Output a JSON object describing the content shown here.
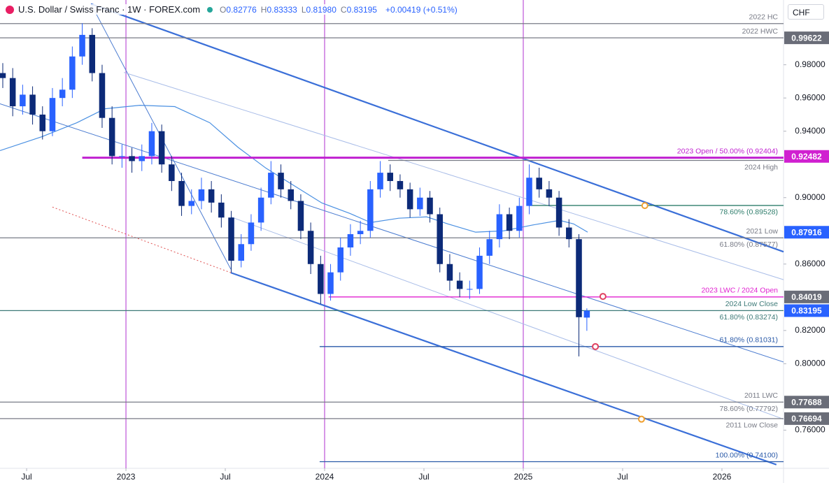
{
  "header": {
    "title": "U.S. Dollar / Swiss Franc · 1W · FOREX.com",
    "quote": [
      {
        "key": "O",
        "value": "0.82776"
      },
      {
        "key": "H",
        "value": "0.83333"
      },
      {
        "key": "L",
        "value": "0.81980"
      },
      {
        "key": "C",
        "value": "0.83195"
      }
    ],
    "change": "+0.00419 (+0.51%)",
    "currency": "CHF"
  },
  "chart_data": {
    "type": "candlestick",
    "up_color": "#2962ff",
    "down_color": "#0c2a78",
    "xlim": [
      2022.366,
      2026.31
    ],
    "ylim": [
      0.737,
      1.019
    ],
    "xticks": [
      {
        "value": 2022.5,
        "label": "Jul"
      },
      2023,
      {
        "value": 2023.5,
        "label": "Jul"
      },
      2024,
      {
        "value": 2024.5,
        "label": "Jul"
      },
      2025,
      {
        "value": 2025.5,
        "label": "Jul"
      },
      2026
    ],
    "yticks": [
      {
        "value": 0.98,
        "label": "0.98000"
      },
      {
        "value": 0.96,
        "label": "0.96000"
      },
      {
        "value": 0.94,
        "label": "0.94000"
      },
      {
        "value": 0.9,
        "label": "0.90000"
      },
      {
        "value": 0.86,
        "label": "0.86000"
      },
      {
        "value": 0.82,
        "label": "0.82000"
      },
      {
        "value": 0.8,
        "label": "0.80000"
      },
      {
        "value": 0.76,
        "label": "0.76000"
      }
    ],
    "x": [
      2022.38,
      2022.43,
      2022.48,
      2022.53,
      2022.58,
      2022.63,
      2022.68,
      2022.73,
      2022.78,
      2022.83,
      2022.88,
      2022.93,
      2022.98,
      2023.03,
      2023.08,
      2023.13,
      2023.18,
      2023.23,
      2023.28,
      2023.33,
      2023.38,
      2023.43,
      2023.48,
      2023.53,
      2023.58,
      2023.63,
      2023.68,
      2023.73,
      2023.78,
      2023.83,
      2023.88,
      2023.93,
      2023.98,
      2024.03,
      2024.08,
      2024.13,
      2024.18,
      2024.23,
      2024.28,
      2024.33,
      2024.38,
      2024.43,
      2024.48,
      2024.53,
      2024.58,
      2024.63,
      2024.68,
      2024.73,
      2024.78,
      2024.83,
      2024.88,
      2024.93,
      2024.98,
      2025.03,
      2025.08,
      2025.13,
      2025.18,
      2025.23,
      2025.28,
      2025.32
    ],
    "open": [
      0.975,
      0.972,
      0.955,
      0.962,
      0.95,
      0.94,
      0.96,
      0.965,
      0.985,
      0.998,
      0.975,
      0.948,
      0.925,
      0.925,
      0.922,
      0.925,
      0.94,
      0.92,
      0.91,
      0.895,
      0.898,
      0.905,
      0.897,
      0.888,
      0.862,
      0.872,
      0.885,
      0.9,
      0.915,
      0.905,
      0.898,
      0.88,
      0.86,
      0.842,
      0.855,
      0.87,
      0.878,
      0.88,
      0.905,
      0.915,
      0.91,
      0.905,
      0.893,
      0.9,
      0.89,
      0.86,
      0.85,
      0.845,
      0.845,
      0.865,
      0.875,
      0.89,
      0.88,
      0.895,
      0.912,
      0.905,
      0.9,
      0.882,
      0.875,
      0.82776
    ],
    "high": [
      0.981,
      0.978,
      0.968,
      0.967,
      0.955,
      0.966,
      0.972,
      0.991,
      1.005,
      1.002,
      0.98,
      0.955,
      0.932,
      0.93,
      0.932,
      0.945,
      0.944,
      0.925,
      0.915,
      0.905,
      0.912,
      0.91,
      0.902,
      0.892,
      0.878,
      0.89,
      0.906,
      0.922,
      0.92,
      0.91,
      0.902,
      0.885,
      0.865,
      0.86,
      0.876,
      0.884,
      0.886,
      0.91,
      0.922,
      0.92,
      0.914,
      0.909,
      0.906,
      0.904,
      0.894,
      0.866,
      0.855,
      0.85,
      0.87,
      0.88,
      0.896,
      0.894,
      0.9,
      0.92,
      0.918,
      0.91,
      0.904,
      0.887,
      0.878,
      0.83333
    ],
    "low": [
      0.966,
      0.949,
      0.95,
      0.944,
      0.935,
      0.937,
      0.955,
      0.96,
      0.98,
      0.97,
      0.942,
      0.92,
      0.918,
      0.915,
      0.916,
      0.92,
      0.915,
      0.904,
      0.889,
      0.89,
      0.893,
      0.891,
      0.882,
      0.855,
      0.858,
      0.868,
      0.88,
      0.896,
      0.9,
      0.893,
      0.875,
      0.854,
      0.836,
      0.838,
      0.85,
      0.865,
      0.872,
      0.876,
      0.9,
      0.904,
      0.9,
      0.888,
      0.889,
      0.885,
      0.855,
      0.844,
      0.84,
      0.839,
      0.842,
      0.86,
      0.87,
      0.875,
      0.876,
      0.89,
      0.9,
      0.895,
      0.877,
      0.87,
      0.8044,
      0.8198
    ],
    "close": [
      0.972,
      0.955,
      0.962,
      0.95,
      0.94,
      0.96,
      0.965,
      0.985,
      0.998,
      0.975,
      0.948,
      0.925,
      0.925,
      0.922,
      0.925,
      0.94,
      0.92,
      0.91,
      0.895,
      0.898,
      0.905,
      0.897,
      0.888,
      0.862,
      0.872,
      0.885,
      0.9,
      0.915,
      0.905,
      0.898,
      0.88,
      0.86,
      0.842,
      0.855,
      0.87,
      0.878,
      0.88,
      0.905,
      0.915,
      0.91,
      0.905,
      0.893,
      0.9,
      0.89,
      0.86,
      0.85,
      0.845,
      0.845,
      0.865,
      0.875,
      0.89,
      0.88,
      0.895,
      0.912,
      0.905,
      0.9,
      0.882,
      0.875,
      0.828,
      0.83195
    ],
    "moving_average": {
      "color": "#4a90e2",
      "x": [
        2022.366,
        2022.577,
        2022.753,
        2022.894,
        2023.07,
        2023.246,
        2023.422,
        2023.563,
        2023.704,
        2023.845,
        2023.986,
        2024.127,
        2024.232,
        2024.373,
        2024.514,
        2024.62,
        2024.76,
        2024.901,
        2025.042,
        2025.183,
        2025.253,
        2025.324
      ],
      "values": [
        0.9283,
        0.9367,
        0.9451,
        0.9535,
        0.9556,
        0.9548,
        0.9451,
        0.9304,
        0.9178,
        0.9073,
        0.8968,
        0.8905,
        0.885,
        0.8876,
        0.8884,
        0.8842,
        0.8792,
        0.88,
        0.8834,
        0.8863,
        0.8842,
        0.8792
      ]
    },
    "year_lines": {
      "color": "#b030d0",
      "values": [
        2023,
        2024,
        2025
      ]
    },
    "trend_lines": [
      {
        "style": "thick",
        "color": "#3a6fd8",
        "x": [
          2022.824,
          2026.31
        ],
        "y": [
          1.0166,
          0.8674
        ]
      },
      {
        "style": "thick",
        "color": "#3a6fd8",
        "x": [
          2023.528,
          2026.274
        ],
        "y": [
          0.8548,
          0.7392
        ]
      },
      {
        "style": "thin",
        "color": "#4a7bd0",
        "x": [
          2022.366,
          2026.31
        ],
        "y": [
          0.9565,
          0.801
        ]
      },
      {
        "style": "thin",
        "color": "#4a7bd0",
        "x": [
          2022.824,
          2023.528
        ],
        "y": [
          1.0166,
          0.8569
        ]
      },
      {
        "style": "faint",
        "color": "#a9bde8",
        "x": [
          2022.99,
          2026.31
        ],
        "y": [
          0.9754,
          0.8506
        ]
      },
      {
        "style": "faint",
        "color": "#a9bde8",
        "x": [
          2023.528,
          2026.31
        ],
        "y": [
          0.8884,
          0.7666
        ]
      },
      {
        "style": "dotted",
        "color": "#e05050",
        "x": [
          2022.63,
          2023.528
        ],
        "y": [
          0.8943,
          0.8548
        ]
      }
    ],
    "levels": [
      {
        "price": 1.0048,
        "from": 2022.366,
        "color": "#787b86",
        "above": "2022 HC"
      },
      {
        "price": 0.99622,
        "from": 2022.366,
        "color": "#787b86",
        "above": "2022 HWC"
      },
      {
        "price": 0.92404,
        "from": 2022.78,
        "color": "#c020d0",
        "above": "2023 Open / 50.00% (0.92404)"
      },
      {
        "price": 0.9224,
        "from": 2024.32,
        "color": "#787b86",
        "below": "2024 High"
      },
      {
        "price": 0.89528,
        "from": 2025.03,
        "color": "#2e7d6b",
        "below": "78.60% (0.89528)"
      },
      {
        "price": 0.87578,
        "from": 2022.366,
        "color": "#787b86",
        "above": "2021 Low",
        "below": "61.80% (0.87577)"
      },
      {
        "price": 0.84019,
        "from": 2024.02,
        "color": "#e020d0",
        "above": "2023 LWC / 2024 Open"
      },
      {
        "price": 0.83195,
        "from": 2022.366,
        "color": "#3d7a78",
        "above": "2024 Low Close",
        "below": "61.80% (0.83274)"
      },
      {
        "price": 0.81031,
        "from": 2023.975,
        "color": "#2a5aa8",
        "above": "61.80% (0.81031)"
      },
      {
        "price": 0.77688,
        "from": 2022.366,
        "color": "#787b86",
        "above": "2011 LWC",
        "below": "78.60% (0.77792)"
      },
      {
        "price": 0.76694,
        "from": 2022.366,
        "color": "#787b86",
        "below": "2011 Low Close"
      },
      {
        "price": 0.741,
        "from": 2023.975,
        "color": "#2a5aa8",
        "above": "100.00% (0.74100)"
      }
    ],
    "price_boxes": [
      {
        "value": 0.99622,
        "color": "#6a6d78"
      },
      {
        "value": 0.92482,
        "color": "#d020d0"
      },
      {
        "value": 0.87916,
        "color": "#2962ff"
      },
      {
        "value": 0.84019,
        "color": "#6a6d78"
      },
      {
        "value": 0.83195,
        "color": "#2962ff"
      },
      {
        "value": 0.77688,
        "color": "#6a6d78"
      },
      {
        "value": 0.76694,
        "color": "#6a6d78"
      }
    ],
    "markers": [
      {
        "x": 2025.612,
        "y": 0.8952,
        "color": "#f0a030"
      },
      {
        "x": 2025.595,
        "y": 0.7666,
        "color": "#f0a030"
      },
      {
        "x": 2025.401,
        "y": 0.8405,
        "color": "#e04060"
      },
      {
        "x": 2025.363,
        "y": 0.8103,
        "color": "#e04060"
      }
    ]
  }
}
